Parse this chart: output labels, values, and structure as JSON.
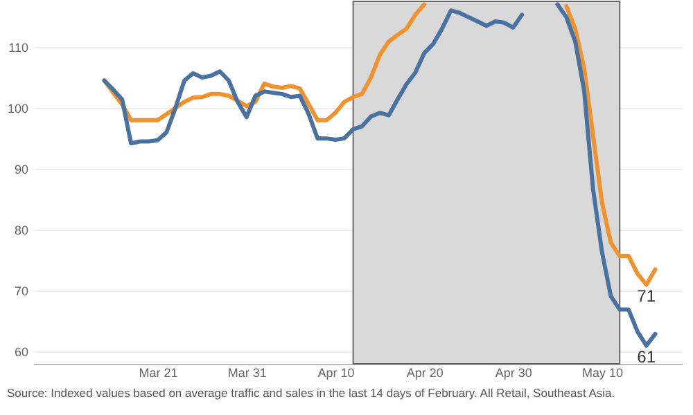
{
  "chart_data": {
    "type": "line",
    "x": [
      "--03-15",
      "--03-16",
      "--03-17",
      "--03-18",
      "--03-19",
      "--03-20",
      "--03-21",
      "--03-22",
      "--03-23",
      "--03-24",
      "--03-25",
      "--03-26",
      "--03-27",
      "--03-28",
      "--03-29",
      "--03-30",
      "--03-31",
      "--04-01",
      "--04-02",
      "--04-03",
      "--04-04",
      "--04-05",
      "--04-06",
      "--04-07",
      "--04-08",
      "--04-09",
      "--04-10",
      "--04-11",
      "--04-12",
      "--04-13",
      "--04-14",
      "--04-15",
      "--04-16",
      "--04-17",
      "--04-18",
      "--04-19",
      "--04-20",
      "--04-21",
      "--04-22",
      "--04-23",
      "--04-24",
      "--04-25",
      "--04-26",
      "--04-27",
      "--04-28",
      "--04-29",
      "--04-30",
      "--05-01",
      "--05-02",
      "--05-03",
      "--05-04",
      "--05-05",
      "--05-06",
      "--05-07",
      "--05-08",
      "--05-09",
      "--05-10",
      "--05-11",
      "--05-12",
      "--05-13",
      "--05-14",
      "--05-15",
      "--05-16"
    ],
    "series": [
      {
        "color": "#f0922e",
        "values": [
          104.5,
          102.5,
          100.6,
          98,
          98,
          98,
          98,
          99,
          100,
          101,
          101.7,
          101.8,
          102.3,
          102.3,
          102,
          101.2,
          100.3,
          101,
          104,
          103.5,
          103.3,
          103.6,
          103.2,
          100.6,
          98,
          98,
          99.2,
          101,
          101.8,
          102.3,
          105,
          108.7,
          110.9,
          112,
          113,
          115.3,
          117,
          null,
          null,
          null,
          null,
          null,
          null,
          null,
          null,
          null,
          null,
          null,
          null,
          null,
          null,
          null,
          116.7,
          113,
          106.5,
          95.5,
          84.5,
          77.9,
          75.7,
          75.7,
          72.8,
          71,
          73.5
        ]
      },
      {
        "color": "#4a72a0",
        "values": [
          104.5,
          103,
          101.4,
          94.2,
          94.5,
          94.5,
          94.7,
          96,
          100,
          104.5,
          105.7,
          105,
          105.3,
          106,
          104.5,
          101,
          98.5,
          102,
          102.7,
          102.5,
          102.3,
          101.8,
          102,
          99,
          95,
          95,
          94.8,
          95,
          96.5,
          97,
          98.6,
          99.2,
          98.8,
          101.4,
          103.9,
          105.8,
          109,
          110.5,
          113,
          116,
          115.6,
          114.9,
          114.2,
          113.5,
          114.2,
          114,
          113.2,
          115.3,
          null,
          null,
          null,
          117,
          114.9,
          110.9,
          102.8,
          86.7,
          76.4,
          69.1,
          66.9,
          66.9,
          63.3,
          61,
          62.9
        ]
      }
    ],
    "xlim": [
      "--03-07",
      "--05-19"
    ],
    "xticks": [
      {
        "value": "--03-21",
        "label": "Mar 21"
      },
      {
        "value": "--03-31",
        "label": "Mar 31"
      },
      {
        "value": "--04-10",
        "label": "Apr 10"
      },
      {
        "value": "--04-20",
        "label": "Apr 20"
      },
      {
        "value": "--04-30",
        "label": "Apr 30"
      },
      {
        "value": "--05-10",
        "label": "May 10"
      }
    ],
    "ylim": [
      58,
      117.5
    ],
    "yticks": [
      60,
      70,
      80,
      90,
      100,
      110
    ],
    "grid": "y",
    "bands": [
      {
        "axis": "x",
        "from": "--04-12",
        "to": "--05-12",
        "color": "#d9d9d9"
      }
    ],
    "annotations": [
      {
        "text": "71",
        "x": "--05-15",
        "y": 71
      },
      {
        "text": "61",
        "x": "--05-15",
        "y": 61
      },
      "Source: Indexed values based on average traffic and sales in the last 14 days of February. All Retail, Southeast Asia."
    ]
  }
}
